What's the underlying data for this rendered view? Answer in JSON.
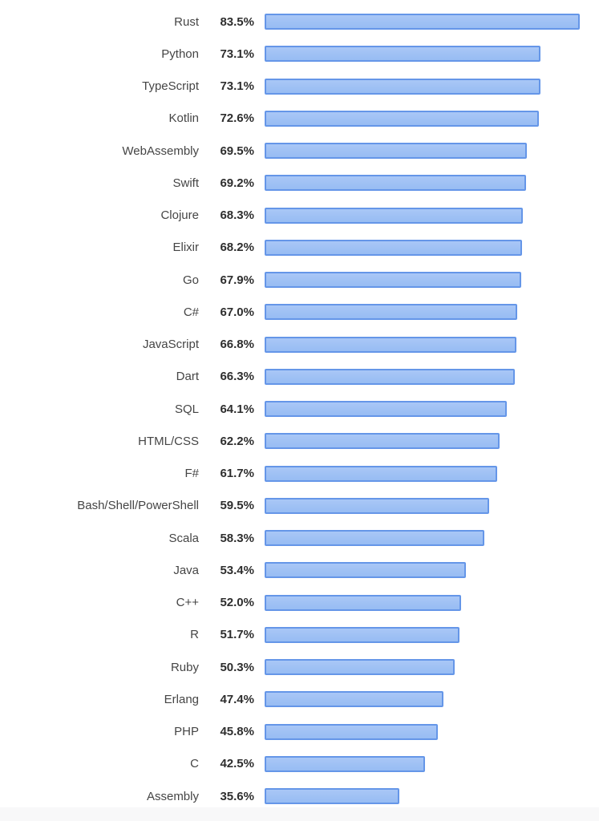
{
  "page": {
    "background_color": "#ffffff",
    "footer_band_color": "#f8f8f9"
  },
  "chart_data": {
    "type": "bar",
    "orientation": "horizontal",
    "title": "",
    "xlabel": "",
    "ylabel": "",
    "xlim": [
      0,
      100
    ],
    "grid": false,
    "legend": "none",
    "categories": [
      "Rust",
      "Python",
      "TypeScript",
      "Kotlin",
      "WebAssembly",
      "Swift",
      "Clojure",
      "Elixir",
      "Go",
      "C#",
      "JavaScript",
      "Dart",
      "SQL",
      "HTML/CSS",
      "F#",
      "Bash/Shell/PowerShell",
      "Scala",
      "Java",
      "C++",
      "R",
      "Ruby",
      "Erlang",
      "PHP",
      "C",
      "Assembly"
    ],
    "values": [
      83.5,
      73.1,
      73.1,
      72.6,
      69.5,
      69.2,
      68.3,
      68.2,
      67.9,
      67.0,
      66.8,
      66.3,
      64.1,
      62.2,
      61.7,
      59.5,
      58.3,
      53.4,
      52.0,
      51.7,
      50.3,
      47.4,
      45.8,
      42.5,
      35.6
    ],
    "value_labels": [
      "83.5%",
      "73.1%",
      "73.1%",
      "72.6%",
      "69.5%",
      "69.2%",
      "68.3%",
      "68.2%",
      "67.9%",
      "67.0%",
      "66.8%",
      "66.3%",
      "64.1%",
      "62.2%",
      "61.7%",
      "59.5%",
      "58.3%",
      "53.4%",
      "52.0%",
      "51.7%",
      "50.3%",
      "47.4%",
      "45.8%",
      "42.5%",
      "35.6%"
    ],
    "bar_fill_color": "#97bcf3",
    "bar_fill_top_color": "#a9c7f6",
    "bar_border_color": "#6596e8",
    "label_color": "#454545",
    "value_color": "#2e2e2e"
  }
}
